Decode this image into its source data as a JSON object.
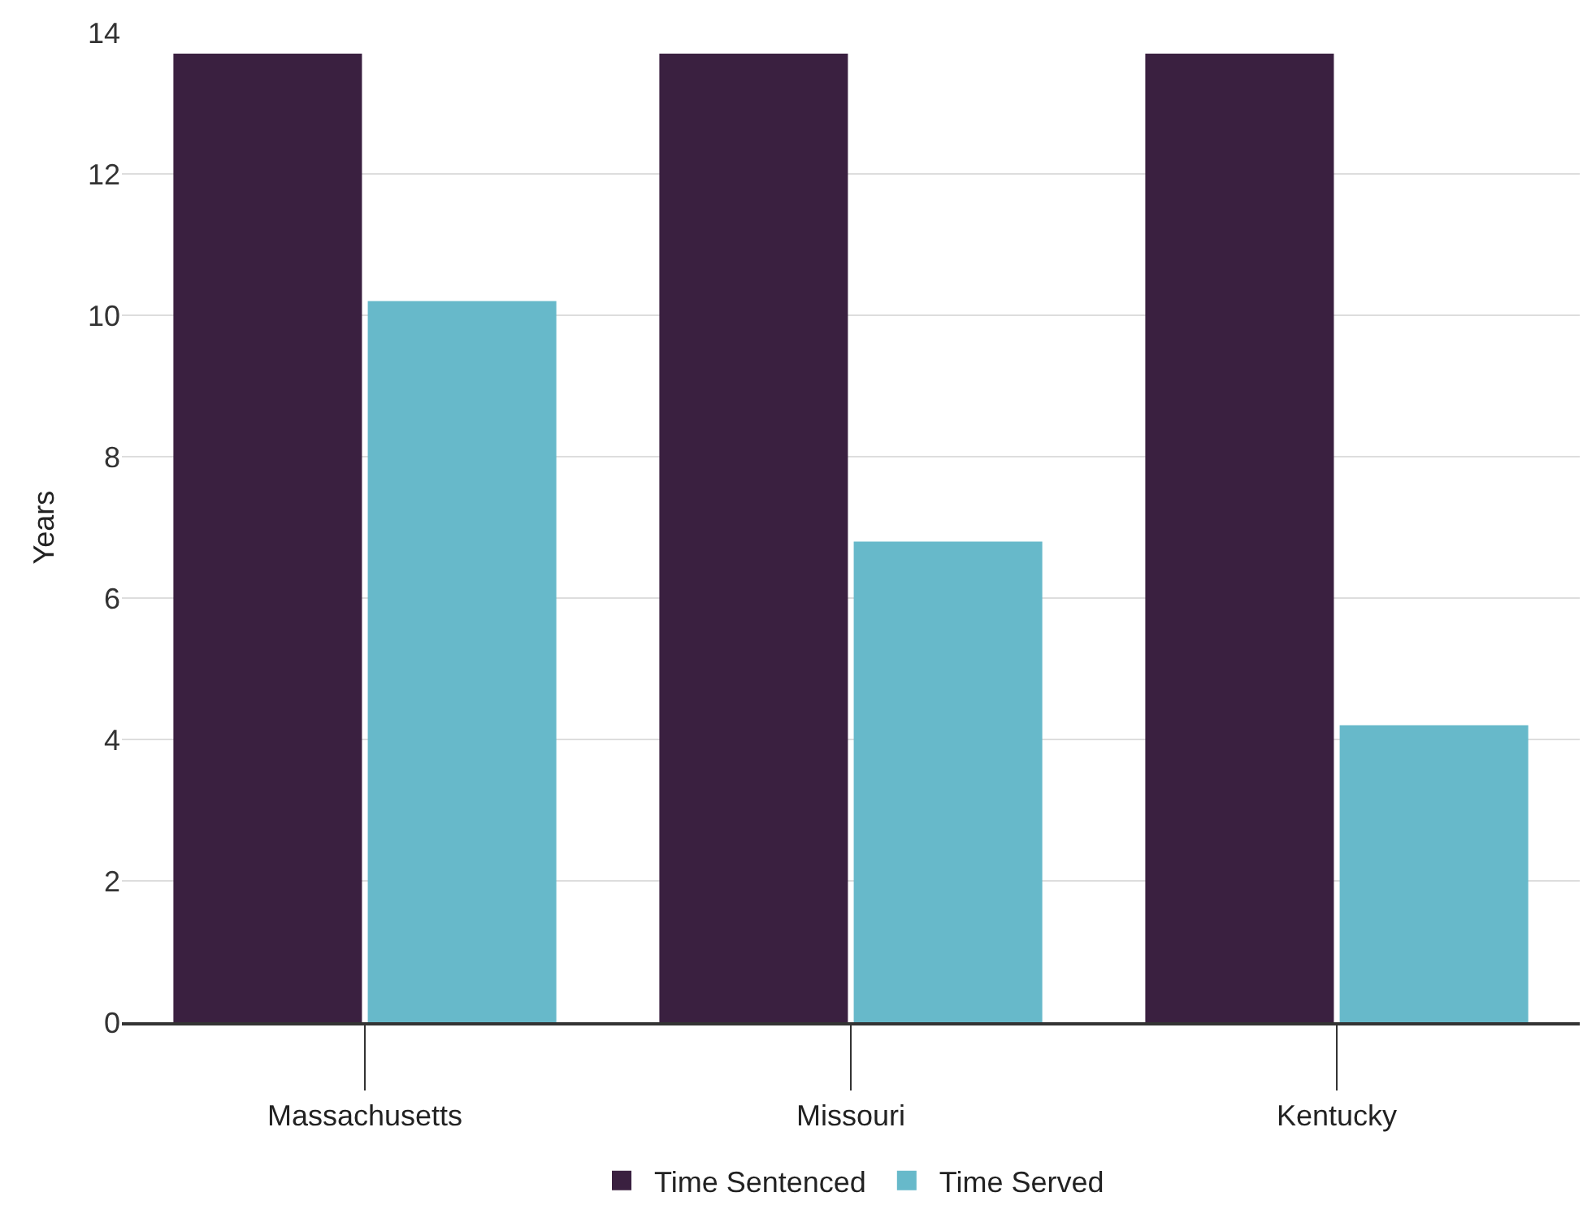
{
  "chart_data": {
    "type": "bar",
    "ylabel": "Years",
    "categories": [
      "Massachusetts",
      "Missouri",
      "Kentucky"
    ],
    "series": [
      {
        "name": "Time Sentenced",
        "color": "#3a2040",
        "values": [
          13.7,
          13.7,
          13.7
        ]
      },
      {
        "name": "Time Served",
        "color": "#67b9ca",
        "values": [
          10.2,
          6.8,
          4.2
        ]
      }
    ],
    "ylim": [
      0,
      14
    ],
    "yticks": [
      0,
      2,
      4,
      6,
      8,
      10,
      12,
      14
    ],
    "grid": "y",
    "legend": "bottom"
  }
}
